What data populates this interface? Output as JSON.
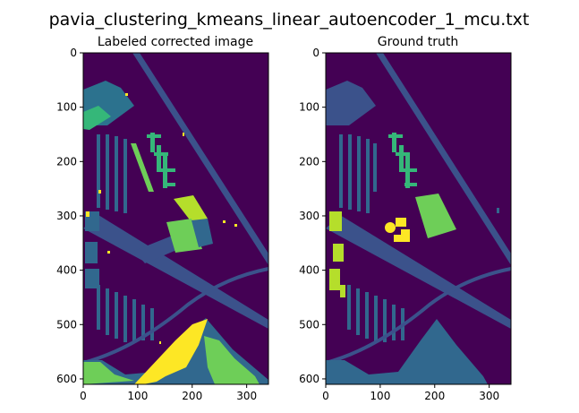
{
  "suptitle": "pavia_clustering_kmeans_linear_autoencoder_1_mcu.txt",
  "colors": {
    "background_class": "#440154",
    "class_purple": "#3b528b",
    "class_teal": "#2c728e",
    "class_blue": "#31688e",
    "class_green": "#35b779",
    "class_lime": "#6ece58",
    "class_yellowgreen": "#b5de2b",
    "class_yellow": "#fde725"
  },
  "chart_data": [
    {
      "type": "heatmap",
      "title": "Labeled corrected image",
      "xlim": [
        0,
        340
      ],
      "ylim": [
        610,
        0
      ],
      "xticks": [
        "0",
        "100",
        "200",
        "300"
      ],
      "yticks": [
        "0",
        "100",
        "200",
        "300",
        "400",
        "500",
        "600"
      ],
      "xtick_values": [
        0,
        100,
        200,
        300
      ],
      "ytick_values": [
        0,
        100,
        200,
        300,
        400,
        500,
        600
      ]
    },
    {
      "type": "heatmap",
      "title": "Ground truth",
      "xlim": [
        0,
        340
      ],
      "ylim": [
        610,
        0
      ],
      "xticks": [
        "0",
        "100",
        "200",
        "300"
      ],
      "yticks": [
        "0",
        "100",
        "200",
        "300",
        "400",
        "500",
        "600"
      ],
      "xtick_values": [
        0,
        100,
        200,
        300
      ],
      "ytick_values": [
        0,
        100,
        200,
        300,
        400,
        500,
        600
      ]
    }
  ]
}
